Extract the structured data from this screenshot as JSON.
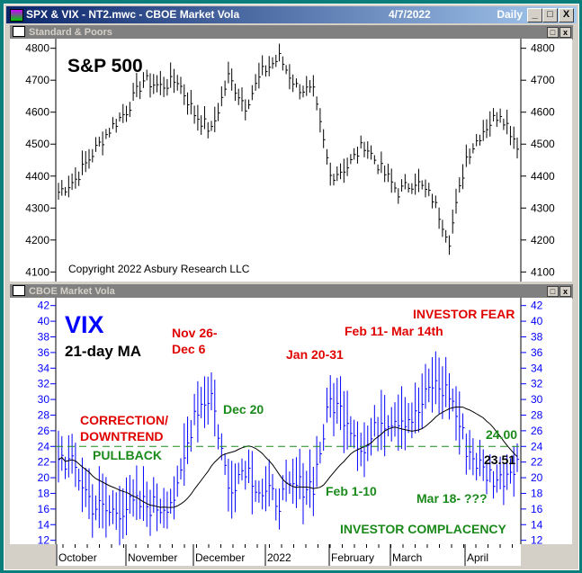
{
  "window": {
    "title": "SPX & VIX - NT2.mwc - CBOE Market Vola",
    "date": "4/7/2022",
    "period": "Daily",
    "min": "_",
    "max": "□",
    "close": "X"
  },
  "panes": [
    {
      "title": "Standard & Poors"
    },
    {
      "title": "CBOE Market Vola"
    }
  ],
  "chart_data": [
    {
      "type": "ohlc",
      "title": "S&P 500",
      "note": "Copyright 2022 Asbury Research LLC",
      "yticks": [
        4100,
        4200,
        4300,
        4400,
        4500,
        4600,
        4700,
        4800
      ],
      "ylim": [
        4070,
        4830
      ],
      "weekly_close": [
        4350,
        4390,
        4470,
        4545,
        4605,
        4700,
        4680,
        4700,
        4595,
        4540,
        4710,
        4620,
        4725,
        4770,
        4680,
        4660,
        4400,
        4430,
        4500,
        4420,
        4350,
        4385,
        4330,
        4200,
        4460,
        4545,
        4600,
        4500
      ]
    },
    {
      "type": "ohlc+line",
      "title": "VIX",
      "subtitle": "21-day MA",
      "ma_period": 21,
      "yticks": [
        12,
        14,
        16,
        18,
        20,
        22,
        24,
        26,
        28,
        30,
        32,
        34,
        36,
        38,
        40,
        42
      ],
      "ylim": [
        11.5,
        43
      ],
      "weekly_close": [
        23,
        21,
        16.5,
        15.5,
        16.3,
        16.5,
        16.3,
        17.9,
        28.6,
        30.7,
        18.7,
        21.6,
        17.9,
        17.2,
        18.8,
        19.2,
        29.8,
        27.7,
        23.2,
        27.4,
        27.8,
        27.6,
        31.9,
        30.8,
        23.9,
        20.8,
        19.6,
        22.5
      ],
      "reference_line": 24.0,
      "reference_label": "24.00",
      "last_value_label": "23.51",
      "annotations": {
        "fear": "INVESTOR FEAR",
        "nov": "Nov 26-",
        "dec6": "Dec 6",
        "jan": "Jan 20-31",
        "feb": "Feb 11- Mar 14th",
        "dec20": "Dec 20",
        "correction": "CORRECTION/",
        "downtrend": "DOWNTREND",
        "pullback": "PULLBACK",
        "feb1": "Feb 1-10",
        "mar18": "Mar 18- ???",
        "complacency": "INVESTOR COMPLACENCY"
      }
    },
    {
      "type": "x-axis",
      "labels": [
        "October",
        "November",
        "December",
        "2022",
        "February",
        "March",
        "April"
      ]
    }
  ],
  "colors": {
    "up": "#000000",
    "vix": "#0000ff",
    "ma": "#000000",
    "red": "#e00000",
    "green": "#1a8a1a"
  }
}
